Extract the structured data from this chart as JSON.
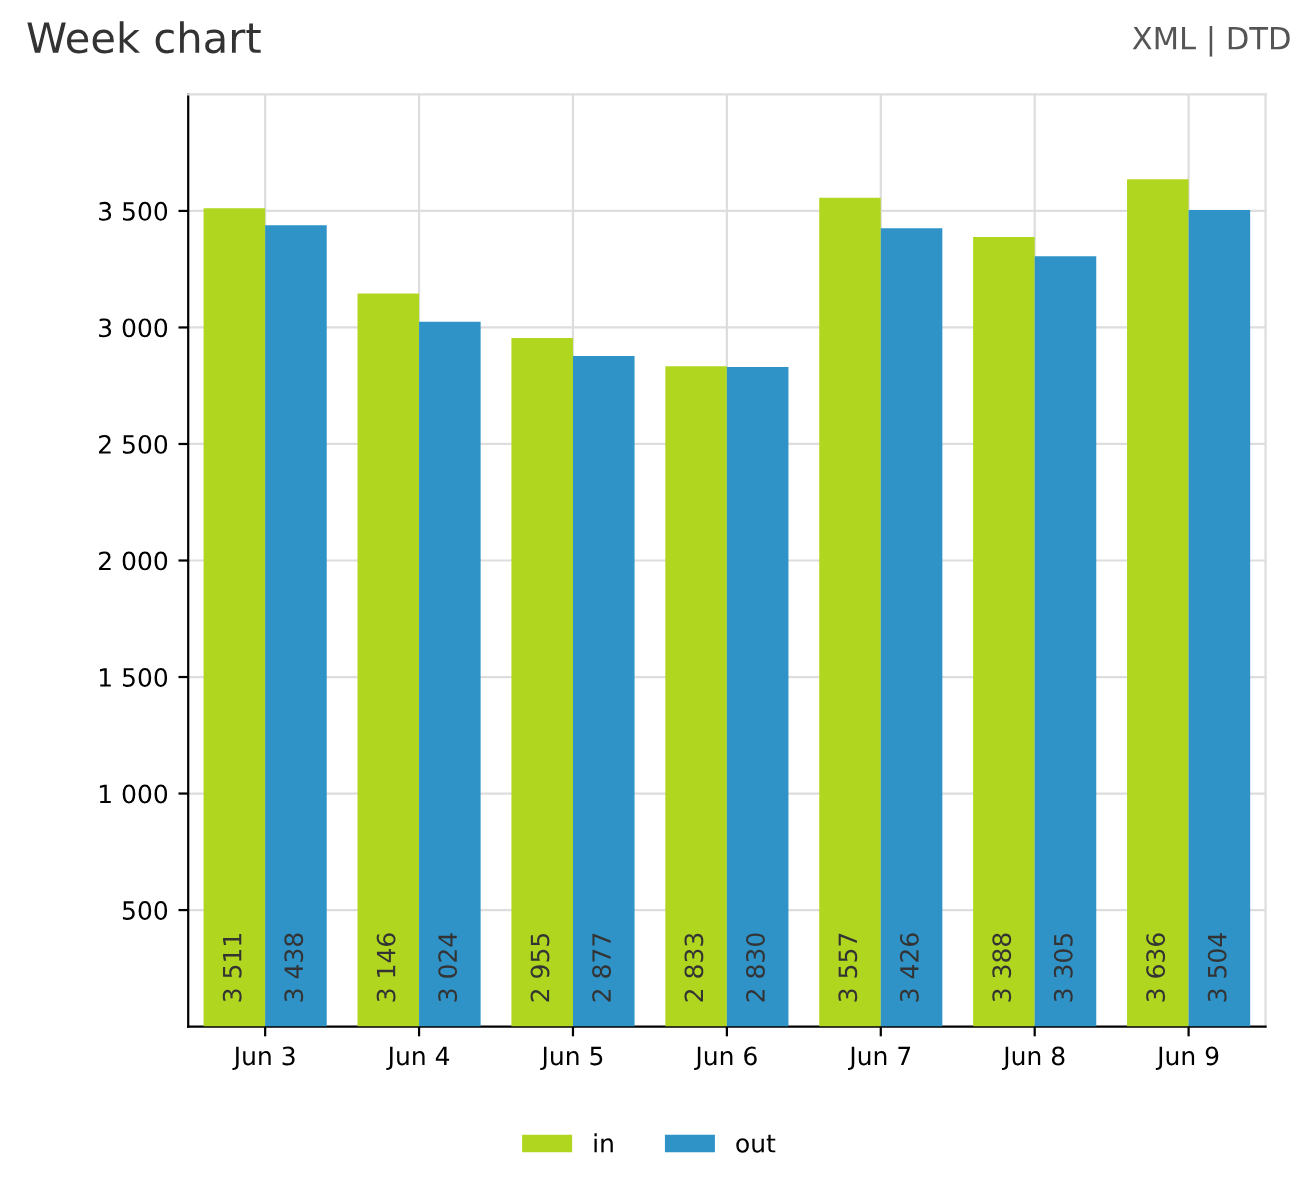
{
  "chart_data": {
    "type": "bar",
    "title": "Week chart",
    "annotations": [
      "XML | DTD"
    ],
    "categories": [
      "Jun 3",
      "Jun 4",
      "Jun 5",
      "Jun 6",
      "Jun 7",
      "Jun 8",
      "Jun 9"
    ],
    "series": [
      {
        "name": "in",
        "color": "#b0d620",
        "values": [
          3511,
          3146,
          2955,
          2833,
          3557,
          3388,
          3636
        ],
        "value_labels": [
          "3 511",
          "3 146",
          "2 955",
          "2 833",
          "3 557",
          "3 388",
          "3 636"
        ]
      },
      {
        "name": "out",
        "color": "#2f93c8",
        "values": [
          3438,
          3024,
          2877,
          2830,
          3426,
          3305,
          3504
        ],
        "value_labels": [
          "3 438",
          "3 024",
          "2 877",
          "2 830",
          "3 426",
          "3 305",
          "3 504"
        ]
      }
    ],
    "ylim": [
      0,
      4000
    ],
    "yticks": [
      {
        "value": 500,
        "label": "500"
      },
      {
        "value": 1000,
        "label": "1 000"
      },
      {
        "value": 1500,
        "label": "1 500"
      },
      {
        "value": 2000,
        "label": "2 000"
      },
      {
        "value": 2500,
        "label": "2 500"
      },
      {
        "value": 3000,
        "label": "3 000"
      },
      {
        "value": 3500,
        "label": "3 500"
      }
    ],
    "grid": true,
    "legend": "bottom"
  }
}
